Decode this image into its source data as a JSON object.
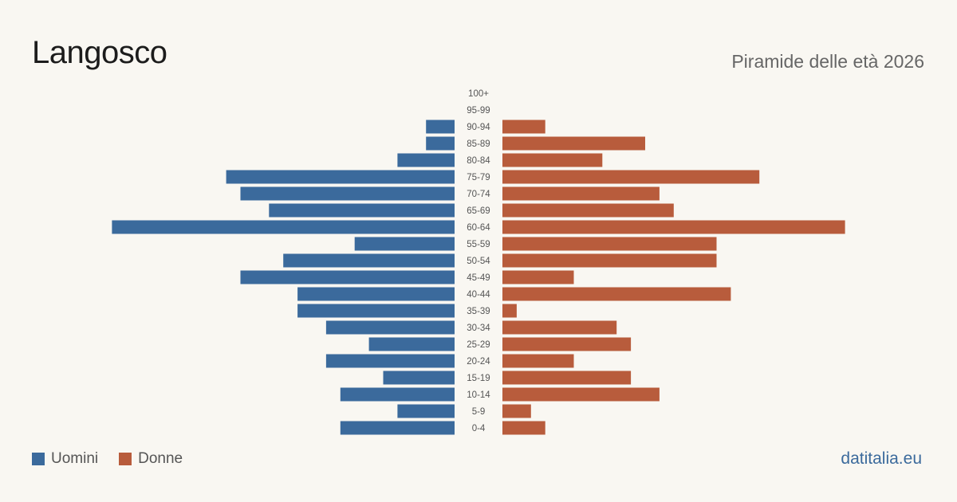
{
  "header": {
    "title": "Langosco",
    "subtitle": "Piramide delle età 2026"
  },
  "legend": {
    "men_label": "Uomini",
    "women_label": "Donne"
  },
  "footer": {
    "source": "datitalia.eu"
  },
  "colors": {
    "men": "#3b6a9c",
    "women": "#b85c3c",
    "background": "#f9f7f2"
  },
  "chart_data": {
    "type": "bar",
    "orientation": "horizontal-pyramid",
    "categories": [
      "100+",
      "95-99",
      "90-94",
      "85-89",
      "80-84",
      "75-79",
      "70-74",
      "65-69",
      "60-64",
      "55-59",
      "50-54",
      "45-49",
      "40-44",
      "35-39",
      "30-34",
      "25-29",
      "20-24",
      "15-19",
      "10-14",
      "5-9",
      "0-4"
    ],
    "series": [
      {
        "name": "Uomini",
        "side": "left",
        "values": [
          0,
          0,
          2,
          2,
          4,
          16,
          15,
          13,
          24,
          7,
          12,
          15,
          11,
          11,
          9,
          6,
          9,
          5,
          8,
          4,
          8
        ]
      },
      {
        "name": "Donne",
        "side": "right",
        "values": [
          0,
          0,
          3,
          10,
          7,
          18,
          11,
          12,
          24,
          15,
          15,
          5,
          16,
          1,
          8,
          9,
          5,
          9,
          11,
          2,
          3
        ]
      }
    ]
  }
}
